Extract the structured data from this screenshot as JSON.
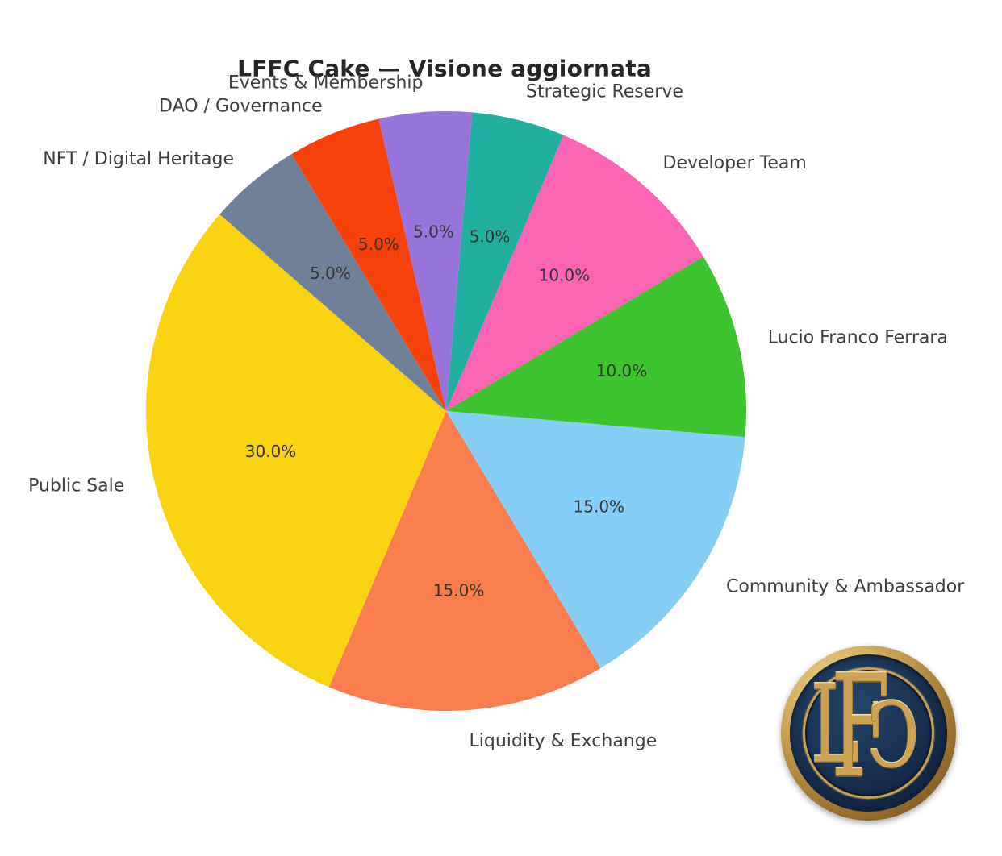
{
  "title": "LFFC Cake — Visione aggiornata",
  "chart_data": {
    "type": "pie",
    "title": "LFFC Cake — Visione aggiornata",
    "direction": "clockwise",
    "start_angle_deg": 85,
    "label_distance": 1.1,
    "pct_distance": 0.6,
    "total": 100,
    "slices": [
      {
        "label": "Strategic Reserve",
        "value": 5.0,
        "pct_label": "5.0%",
        "color": "#21AFA0"
      },
      {
        "label": "Developer Team",
        "value": 10.0,
        "pct_label": "10.0%",
        "color": "#FC64B4"
      },
      {
        "label": "Lucio Franco Ferrara",
        "value": 10.0,
        "pct_label": "10.0%",
        "color": "#3CC52F"
      },
      {
        "label": "Community & Ambassador",
        "value": 15.0,
        "pct_label": "15.0%",
        "color": "#85CEF5"
      },
      {
        "label": "Liquidity & Exchange",
        "value": 15.0,
        "pct_label": "15.0%",
        "color": "#FA7D4E"
      },
      {
        "label": "Public Sale",
        "value": 30.0,
        "pct_label": "30.0%",
        "color": "#F9D211"
      },
      {
        "label": "NFT / Digital Heritage",
        "value": 5.0,
        "pct_label": "5.0%",
        "color": "#6F819A"
      },
      {
        "label": "DAO / Governance",
        "value": 5.0,
        "pct_label": "5.0%",
        "color": "#F6420A"
      },
      {
        "label": "Events & Membership",
        "value": 5.0,
        "pct_label": "5.0%",
        "color": "#9775DB"
      }
    ]
  },
  "logo": {
    "monogram": "LFC",
    "letters": [
      "L",
      "F",
      "C"
    ],
    "colors": {
      "gold": "#CDA255",
      "navy": "#152B45"
    }
  }
}
